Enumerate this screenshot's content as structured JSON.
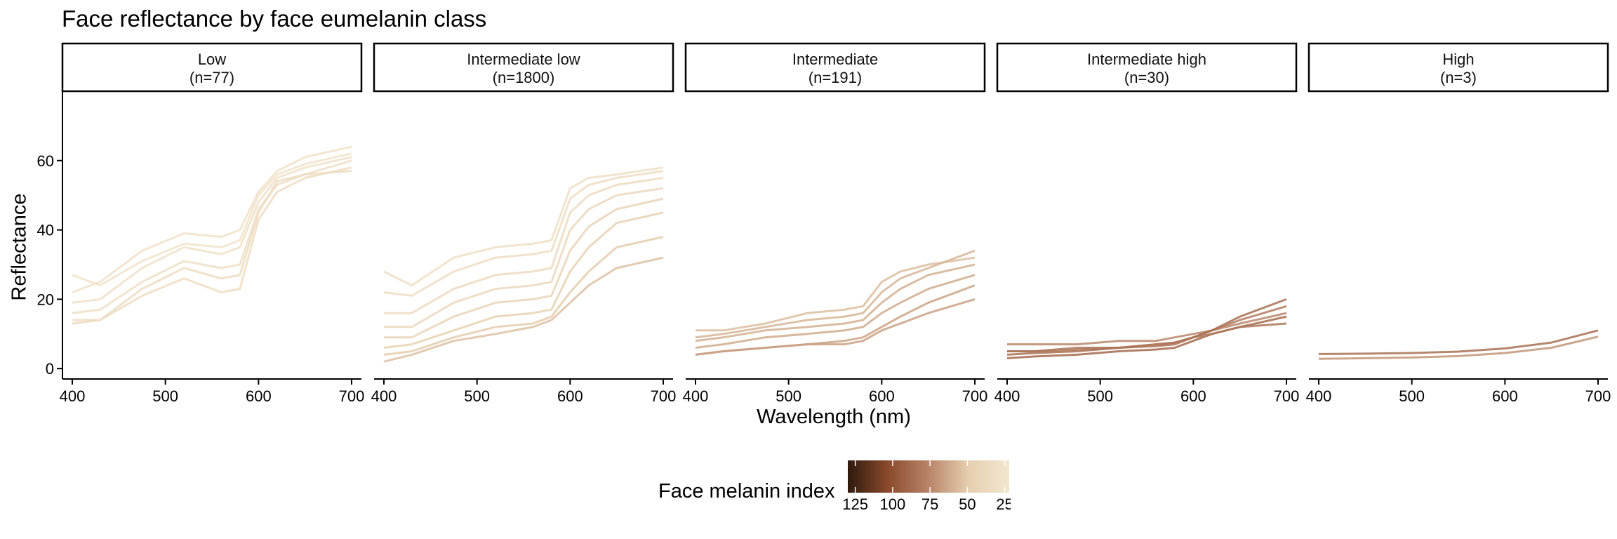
{
  "title": "Face reflectance by face eumelanin class",
  "chart_data": {
    "type": "line",
    "title": "Face reflectance by face eumelanin class",
    "xlabel": "Wavelength (nm)",
    "ylabel": "Reflectance",
    "xlim": [
      400,
      700
    ],
    "ylim": [
      -3,
      80
    ],
    "x_ticks": [
      400,
      500,
      600,
      700
    ],
    "y_ticks": [
      0,
      20,
      40,
      60
    ],
    "panels": [
      {
        "label": "Low",
        "count": "(n=77)",
        "series": [
          {
            "melanin": 27,
            "x": [
              400,
              430,
              475,
              520,
              560,
              580,
              600,
              620,
              650,
              700
            ],
            "y": [
              22,
              25,
              34,
              39,
              38,
              40,
              51,
              57,
              61,
              64
            ]
          },
          {
            "melanin": 28,
            "x": [
              400,
              430,
              475,
              520,
              560,
              580,
              600,
              620,
              650,
              700
            ],
            "y": [
              19,
              20,
              29,
              35,
              33,
              35,
              48,
              55,
              58,
              61
            ]
          },
          {
            "melanin": 30,
            "x": [
              400,
              430,
              475,
              520,
              560,
              580,
              600,
              620,
              650,
              700
            ],
            "y": [
              16,
              17,
              25,
              31,
              29,
              30,
              46,
              53,
              56,
              60
            ]
          },
          {
            "melanin": 33,
            "x": [
              400,
              430,
              475,
              520,
              560,
              580,
              600,
              620,
              650,
              700
            ],
            "y": [
              14,
              14,
              21,
              26,
              22,
              23,
              43,
              51,
              55,
              58
            ]
          },
          {
            "melanin": 26,
            "x": [
              400,
              430,
              475,
              520,
              560,
              580,
              600,
              620,
              650,
              700
            ],
            "y": [
              27,
              24,
              31,
              36,
              35,
              37,
              50,
              56,
              59,
              62
            ]
          },
          {
            "melanin": 34,
            "x": [
              400,
              430,
              475,
              520,
              560,
              580,
              600,
              620,
              650,
              700
            ],
            "y": [
              13,
              14,
              23,
              29,
              26,
              27,
              45,
              54,
              56,
              57
            ]
          }
        ]
      },
      {
        "label": "Intermediate low",
        "count": "(n=1800)",
        "series": [
          {
            "melanin": 30,
            "x": [
              400,
              430,
              475,
              520,
              560,
              580,
              600,
              620,
              650,
              700
            ],
            "y": [
              28,
              24,
              32,
              35,
              36,
              37,
              52,
              55,
              56,
              58
            ]
          },
          {
            "melanin": 32,
            "x": [
              400,
              430,
              475,
              520,
              560,
              580,
              600,
              620,
              650,
              700
            ],
            "y": [
              22,
              21,
              28,
              32,
              33,
              34,
              49,
              53,
              55,
              57
            ]
          },
          {
            "melanin": 35,
            "x": [
              400,
              430,
              475,
              520,
              560,
              580,
              600,
              620,
              650,
              700
            ],
            "y": [
              16,
              16,
              23,
              27,
              28,
              29,
              45,
              50,
              53,
              55
            ]
          },
          {
            "melanin": 38,
            "x": [
              400,
              430,
              475,
              520,
              560,
              580,
              600,
              620,
              650,
              700
            ],
            "y": [
              12,
              12,
              19,
              23,
              24,
              25,
              40,
              46,
              50,
              52
            ]
          },
          {
            "melanin": 42,
            "x": [
              400,
              430,
              475,
              520,
              560,
              580,
              600,
              620,
              650,
              700
            ],
            "y": [
              9,
              9,
              15,
              19,
              20,
              21,
              34,
              41,
              46,
              49
            ]
          },
          {
            "melanin": 46,
            "x": [
              400,
              430,
              475,
              520,
              560,
              580,
              600,
              620,
              650,
              700
            ],
            "y": [
              6,
              7,
              11,
              15,
              16,
              17,
              28,
              35,
              42,
              45
            ]
          },
          {
            "melanin": 50,
            "x": [
              400,
              430,
              475,
              520,
              560,
              580,
              600,
              620,
              650,
              700
            ],
            "y": [
              4,
              5,
              9,
              12,
              13,
              15,
              22,
              28,
              35,
              38
            ]
          },
          {
            "melanin": 54,
            "x": [
              400,
              430,
              475,
              520,
              560,
              580,
              600,
              620,
              650,
              700
            ],
            "y": [
              2,
              4,
              8,
              10,
              12,
              14,
              19,
              24,
              29,
              32
            ]
          }
        ]
      },
      {
        "label": "Intermediate",
        "count": "(n=191)",
        "series": [
          {
            "melanin": 55,
            "x": [
              400,
              430,
              475,
              520,
              560,
              580,
              600,
              620,
              650,
              700
            ],
            "y": [
              11,
              11,
              13,
              16,
              17,
              18,
              25,
              28,
              30,
              32
            ]
          },
          {
            "melanin": 58,
            "x": [
              400,
              430,
              475,
              520,
              560,
              580,
              600,
              620,
              650,
              700
            ],
            "y": [
              9,
              10,
              12,
              14,
              15,
              16,
              22,
              26,
              29,
              34
            ]
          },
          {
            "melanin": 60,
            "x": [
              400,
              430,
              475,
              520,
              560,
              580,
              600,
              620,
              650,
              700
            ],
            "y": [
              8,
              9,
              11,
              12,
              13,
              14,
              19,
              23,
              27,
              30
            ]
          },
          {
            "melanin": 62,
            "x": [
              400,
              430,
              475,
              520,
              560,
              580,
              600,
              620,
              650,
              700
            ],
            "y": [
              6,
              7,
              9,
              10,
              11,
              12,
              16,
              19,
              23,
              27
            ]
          },
          {
            "melanin": 65,
            "x": [
              400,
              430,
              475,
              520,
              560,
              580,
              600,
              620,
              650,
              700
            ],
            "y": [
              4,
              5,
              6,
              7,
              8,
              9,
              12,
              15,
              19,
              24
            ]
          },
          {
            "melanin": 66,
            "x": [
              400,
              430,
              475,
              520,
              560,
              580,
              600,
              620,
              650,
              700
            ],
            "y": [
              4,
              5,
              6,
              7,
              7,
              8,
              11,
              13,
              16,
              20
            ]
          }
        ]
      },
      {
        "label": "Intermediate high",
        "count": "(n=30)",
        "series": [
          {
            "melanin": 75,
            "x": [
              400,
              430,
              475,
              520,
              560,
              580,
              600,
              620,
              650,
              700
            ],
            "y": [
              7,
              7,
              7,
              8,
              8,
              9,
              10,
              11,
              13,
              16
            ]
          },
          {
            "melanin": 80,
            "x": [
              400,
              430,
              475,
              520,
              560,
              580,
              600,
              620,
              650,
              700
            ],
            "y": [
              5,
              5,
              5.5,
              6,
              7,
              7.5,
              9,
              11,
              14,
              18
            ]
          },
          {
            "melanin": 85,
            "x": [
              400,
              430,
              475,
              520,
              560,
              580,
              600,
              620,
              650,
              700
            ],
            "y": [
              4,
              4.5,
              5,
              6,
              6.5,
              7,
              9,
              11,
              15,
              20
            ]
          },
          {
            "melanin": 88,
            "x": [
              400,
              430,
              475,
              520,
              560,
              580,
              600,
              620,
              650,
              700
            ],
            "y": [
              3,
              3.5,
              4,
              5,
              5.5,
              6,
              8,
              10,
              12,
              15
            ]
          },
          {
            "melanin": 82,
            "x": [
              400,
              430,
              475,
              520,
              560,
              580,
              600,
              620,
              650,
              700
            ],
            "y": [
              5,
              5,
              6,
              6,
              7,
              7.5,
              9,
              10,
              12,
              13
            ]
          }
        ]
      },
      {
        "label": "High",
        "count": "(n=3)",
        "series": [
          {
            "melanin": 85,
            "x": [
              400,
              450,
              500,
              550,
              600,
              650,
              700
            ],
            "y": [
              4.2,
              4.3,
              4.5,
              4.9,
              5.8,
              7.5,
              11
            ]
          },
          {
            "melanin": 70,
            "x": [
              400,
              450,
              500,
              550,
              600,
              650,
              700
            ],
            "y": [
              2.8,
              3.0,
              3.2,
              3.6,
              4.5,
              6.0,
              9.2
            ]
          }
        ]
      }
    ],
    "legend": {
      "title": "Face melanin index",
      "ticks": [
        125,
        100,
        75,
        50,
        25
      ],
      "range": [
        130,
        22
      ],
      "colors": [
        "#2e1a0e",
        "#8b4a2c",
        "#b88468",
        "#e6cfb0",
        "#f3e6cf"
      ]
    }
  }
}
